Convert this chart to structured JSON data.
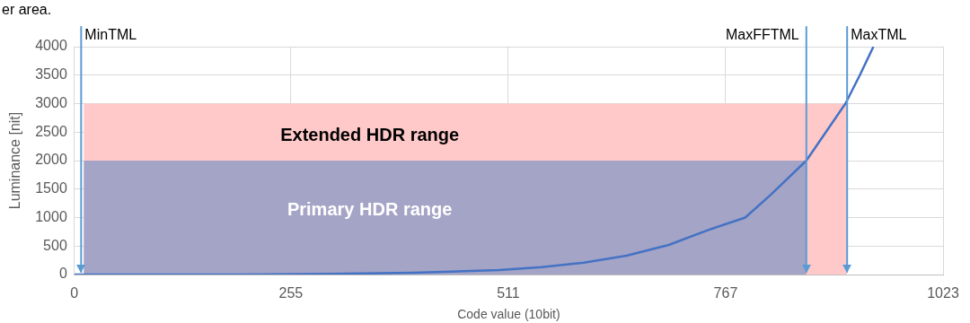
{
  "chart_data": {
    "type": "line",
    "xlabel": "Code value (10bit)",
    "ylabel": "Luminance [nit]",
    "xlim": [
      0,
      1023
    ],
    "xticks": [
      0,
      255,
      511,
      767,
      1023
    ],
    "ylim": [
      0,
      4000
    ],
    "yticks": [
      0,
      500,
      1000,
      1500,
      2000,
      2500,
      3000,
      3500,
      4000
    ],
    "grid": true,
    "series": [
      {
        "type": "area",
        "color": "#ffc9c9",
        "x": [
          11,
          910
        ],
        "values": [
          3000,
          3000
        ]
      },
      {
        "type": "area",
        "color": "#a4a4c6",
        "x": [
          11,
          862
        ],
        "values": [
          2000,
          2000
        ]
      },
      {
        "type": "line",
        "color": "#4472c4",
        "x": [
          0,
          100,
          200,
          300,
          400,
          500,
          550,
          600,
          650,
          700,
          750,
          790,
          820,
          862,
          885,
          908,
          925,
          941
        ],
        "values": [
          0,
          0,
          0,
          10,
          30,
          80,
          130,
          210,
          330,
          520,
          800,
          1000,
          1400,
          2000,
          2500,
          3000,
          3500,
          4000
        ]
      }
    ],
    "ref_lines": [
      {
        "axis": "x",
        "value": 8,
        "label": "MinTML",
        "color": "#5b9bd5"
      },
      {
        "axis": "x",
        "value": 862,
        "label": "MaxFFTML",
        "color": "#5b9bd5"
      },
      {
        "axis": "x",
        "value": 910,
        "label": "MaxTML",
        "color": "#5b9bd5"
      }
    ],
    "annotations": [
      "er area.",
      "Extended HDR range",
      "Primary HDR range"
    ]
  }
}
